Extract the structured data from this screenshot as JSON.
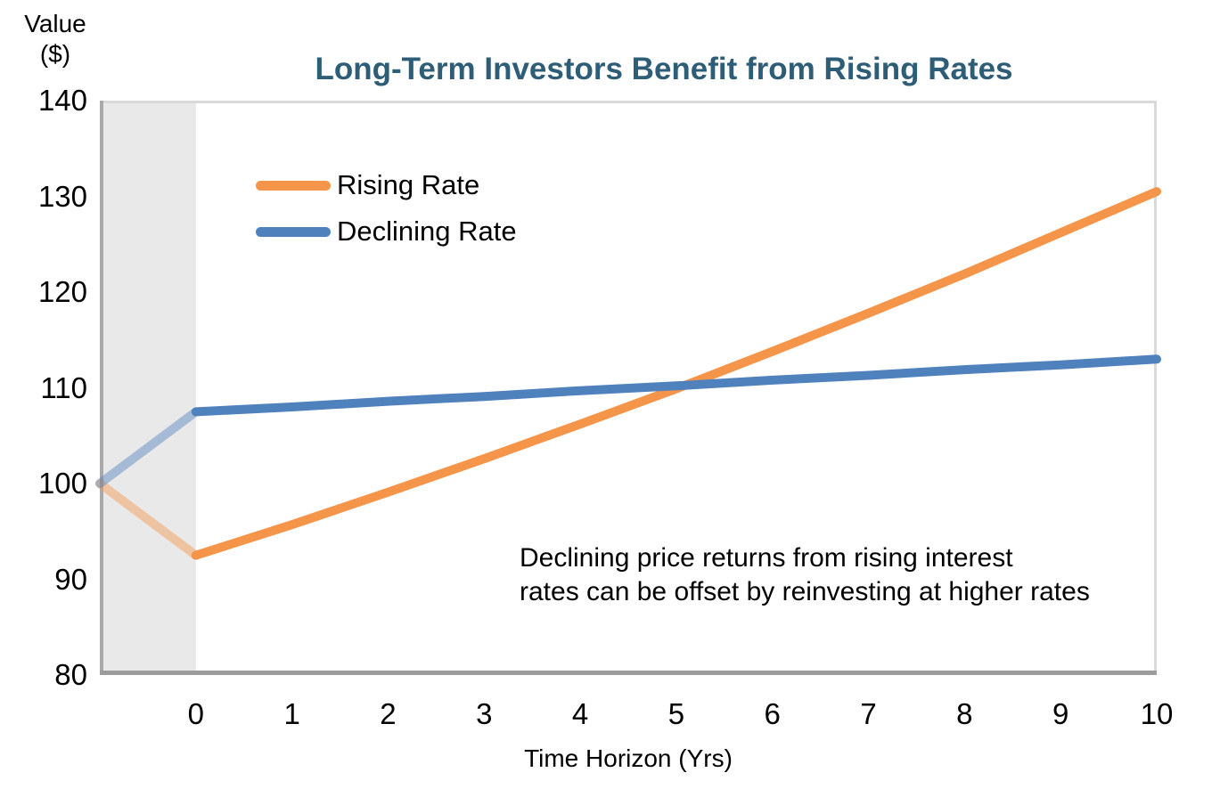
{
  "title": {
    "text": "Long-Term Investors Benefit from Rising Rates",
    "color": "#2E5D77"
  },
  "y_axis_title": {
    "line1": "Value",
    "line2": "($)"
  },
  "x_axis_title": "Time Horizon (Yrs)",
  "annotation": {
    "line1": "Declining price returns from rising interest",
    "line2": "rates can be offset by reinvesting at higher rates"
  },
  "legend": {
    "items": [
      {
        "label": "Rising Rate"
      },
      {
        "label": "Declining Rate"
      }
    ]
  },
  "chart_data": {
    "type": "line",
    "title": "Long-Term Investors Benefit from Rising Rates",
    "xlabel": "Time Horizon (Yrs)",
    "ylabel": "Value ($)",
    "xlim": [
      -1,
      10
    ],
    "ylim": [
      80,
      140
    ],
    "x_ticks": [
      0,
      1,
      2,
      3,
      4,
      5,
      6,
      7,
      8,
      9,
      10
    ],
    "y_ticks": [
      140,
      130,
      120,
      110,
      100,
      90,
      80
    ],
    "grid": false,
    "legend_position": "upper-left-inside",
    "pre_period_band": {
      "x_start": -1,
      "x_end": 0,
      "fill": "#E9E9E9",
      "line_opacity": 0.45
    },
    "plot_border_colors": {
      "top": "#D9D9D9",
      "right": "#D9D9D9",
      "left": "#A9A9A9",
      "bottom": "#9C9C9C"
    },
    "series": [
      {
        "name": "Rising Rate",
        "color": "#F5954A",
        "points": [
          [
            -1,
            100
          ],
          [
            0,
            92.5
          ],
          [
            1,
            95.7
          ],
          [
            2,
            99.1
          ],
          [
            3,
            102.6
          ],
          [
            4,
            106.2
          ],
          [
            5,
            109.9
          ],
          [
            6,
            113.8
          ],
          [
            7,
            117.8
          ],
          [
            8,
            121.9
          ],
          [
            9,
            126.2
          ],
          [
            10,
            130.5
          ]
        ]
      },
      {
        "name": "Declining Rate",
        "color": "#4F81BD",
        "points": [
          [
            -1,
            100
          ],
          [
            0,
            107.5
          ],
          [
            1,
            108.0
          ],
          [
            2,
            108.6
          ],
          [
            3,
            109.1
          ],
          [
            4,
            109.7
          ],
          [
            5,
            110.2
          ],
          [
            6,
            110.8
          ],
          [
            7,
            111.3
          ],
          [
            8,
            111.9
          ],
          [
            9,
            112.4
          ],
          [
            10,
            113.0
          ]
        ]
      }
    ]
  }
}
